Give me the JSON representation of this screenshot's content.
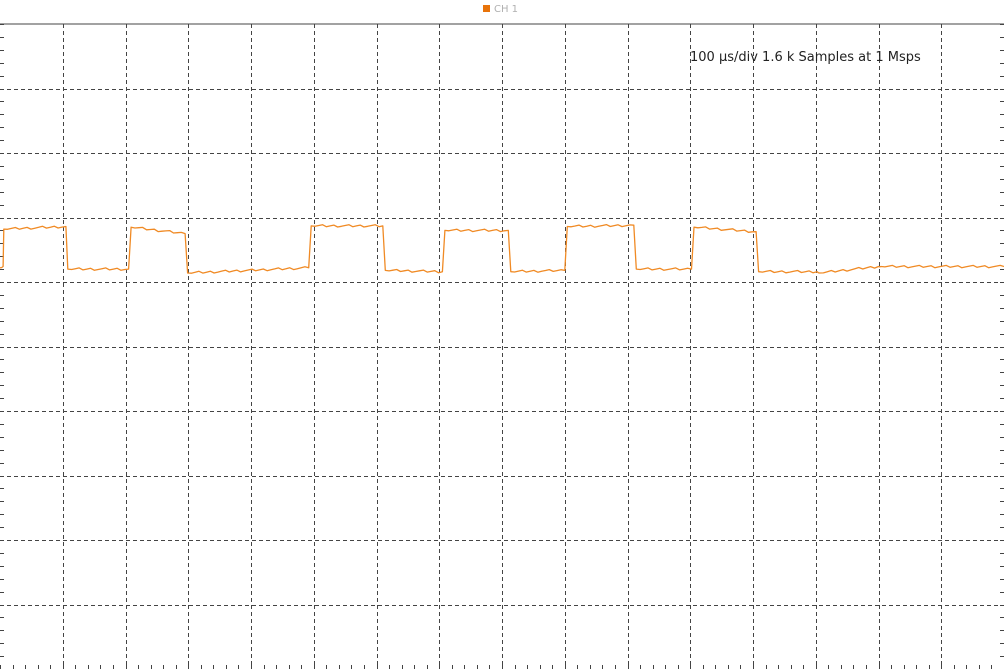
{
  "legend": {
    "channel_label": "CH 1",
    "channel_color": "#e8730a"
  },
  "timebase": {
    "text": "100 µs/div 1.6 k Samples at 1 Msps"
  },
  "colors": {
    "background": "#ffffff",
    "grid": "#444444",
    "trace": "#f08a24"
  },
  "chart_data": {
    "type": "line",
    "title": "",
    "xlabel": "",
    "ylabel": "",
    "x_units": "µs",
    "x_divisions": 16,
    "x_per_division": 100,
    "xlim": [
      0,
      1600
    ],
    "y_divisions": 10,
    "ylim": [
      0,
      10
    ],
    "grid": true,
    "grid_style": "dashed",
    "legend_position": "top-center",
    "series": [
      {
        "name": "CH 1",
        "color": "#f08a24",
        "x": [
          0,
          5,
          6,
          105,
          108,
          205,
          209,
          295,
          299,
          492,
          496,
          610,
          614,
          705,
          709,
          810,
          814,
          900,
          904,
          1010,
          1014,
          1102,
          1106,
          1205,
          1209,
          1302,
          1306,
          1400,
          1404,
          1600
        ],
        "y": [
          6.22,
          6.24,
          6.82,
          6.86,
          6.2,
          6.2,
          6.85,
          6.75,
          6.14,
          6.22,
          6.87,
          6.87,
          6.18,
          6.16,
          6.8,
          6.8,
          6.16,
          6.18,
          6.86,
          6.88,
          6.2,
          6.2,
          6.85,
          6.78,
          6.16,
          6.16,
          6.14,
          6.24,
          6.24,
          6.24
        ]
      }
    ]
  }
}
